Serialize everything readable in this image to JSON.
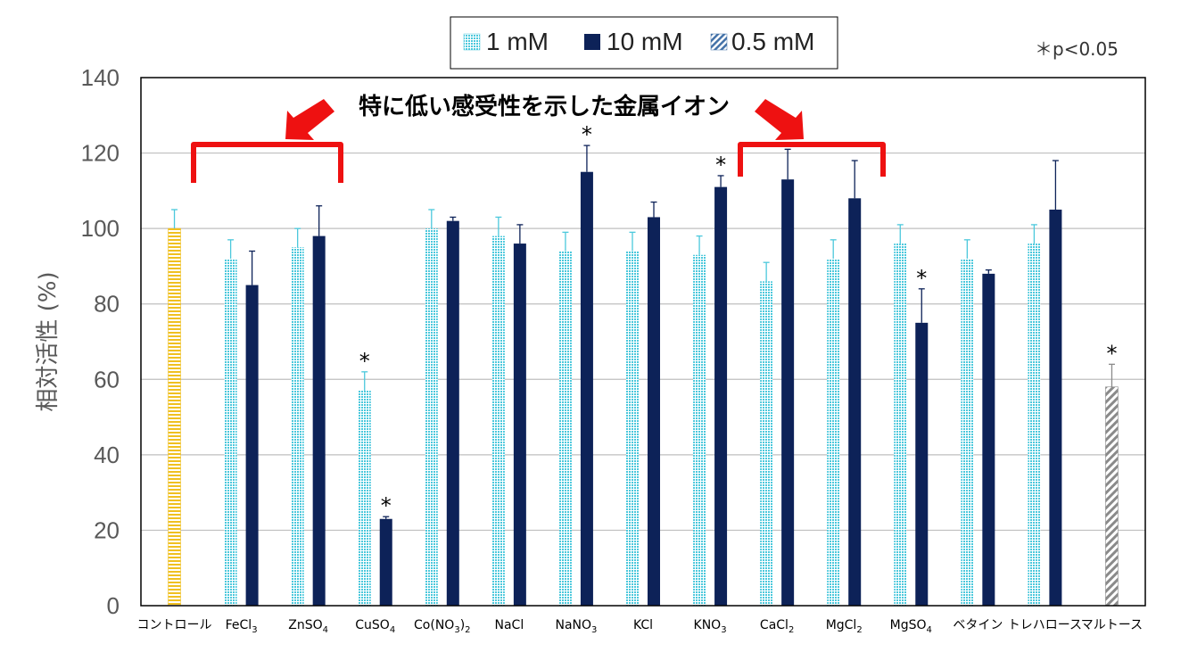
{
  "chart_data": {
    "type": "bar",
    "ylabel": "相対活性 (%)",
    "ylim": [
      0,
      140
    ],
    "yticks": [
      0,
      20,
      40,
      60,
      80,
      100,
      120,
      140
    ],
    "grid": true,
    "legend_position": "top-center",
    "significance_note": "＊p<0.05",
    "annotation": "特に低い感受性を示した金属イオン",
    "categories": [
      {
        "base": "コントロール",
        "sub": "",
        "tail": ""
      },
      {
        "base": "FeCl",
        "sub": "3",
        "tail": ""
      },
      {
        "base": "ZnSO",
        "sub": "4",
        "tail": ""
      },
      {
        "base": "CuSO",
        "sub": "4",
        "tail": ""
      },
      {
        "base": "Co(NO",
        "sub": "3",
        "tail": ")",
        "sub2": "2"
      },
      {
        "base": "NaCl",
        "sub": "",
        "tail": ""
      },
      {
        "base": "NaNO",
        "sub": "3",
        "tail": ""
      },
      {
        "base": "KCl",
        "sub": "",
        "tail": ""
      },
      {
        "base": "KNO",
        "sub": "3",
        "tail": ""
      },
      {
        "base": "CaCl",
        "sub": "2",
        "tail": ""
      },
      {
        "base": "MgCl",
        "sub": "2",
        "tail": ""
      },
      {
        "base": "MgSO",
        "sub": "4",
        "tail": ""
      },
      {
        "base": "ベタイン",
        "sub": "",
        "tail": ""
      },
      {
        "base": "トレハロース",
        "sub": "",
        "tail": ""
      },
      {
        "base": "マルトース",
        "sub": "",
        "tail": ""
      }
    ],
    "series": [
      {
        "name": "1 mM",
        "color": "#4BC8DC",
        "values": [
          null,
          92,
          95,
          57,
          100,
          98,
          94,
          null,
          93,
          86,
          92,
          96,
          92,
          96,
          null
        ],
        "errors": [
          null,
          5,
          5,
          5,
          5,
          5,
          5,
          null,
          5,
          5,
          5,
          5,
          5,
          5,
          null
        ],
        "significant": [
          false,
          false,
          false,
          true,
          false,
          false,
          false,
          false,
          false,
          false,
          false,
          false,
          false,
          false,
          false
        ]
      },
      {
        "name": "10 mM",
        "color": "#0D2258",
        "values": [
          null,
          85,
          98,
          23,
          102,
          96,
          115,
          103,
          111,
          113,
          108,
          75,
          88,
          105,
          null
        ],
        "errors": [
          null,
          9,
          8,
          0.6,
          1,
          5,
          7,
          4,
          3,
          8,
          10,
          9,
          1,
          13,
          null
        ],
        "significant": [
          false,
          false,
          false,
          true,
          false,
          false,
          true,
          false,
          true,
          false,
          false,
          true,
          false,
          false,
          false
        ]
      },
      {
        "name": "0.5 mM",
        "color": "#8A8A8A",
        "values": [
          null,
          null,
          null,
          null,
          null,
          null,
          null,
          null,
          null,
          null,
          null,
          null,
          null,
          null,
          58
        ],
        "errors": [
          null,
          null,
          null,
          null,
          null,
          null,
          null,
          null,
          null,
          null,
          null,
          null,
          null,
          null,
          6
        ],
        "significant": [
          false,
          false,
          false,
          false,
          false,
          false,
          false,
          false,
          false,
          false,
          false,
          false,
          false,
          false,
          true
        ]
      }
    ],
    "control": {
      "value": 100,
      "error": 5,
      "color": "#F0C020"
    },
    "kcl_1mM": {
      "value": 94,
      "error": 5
    }
  }
}
